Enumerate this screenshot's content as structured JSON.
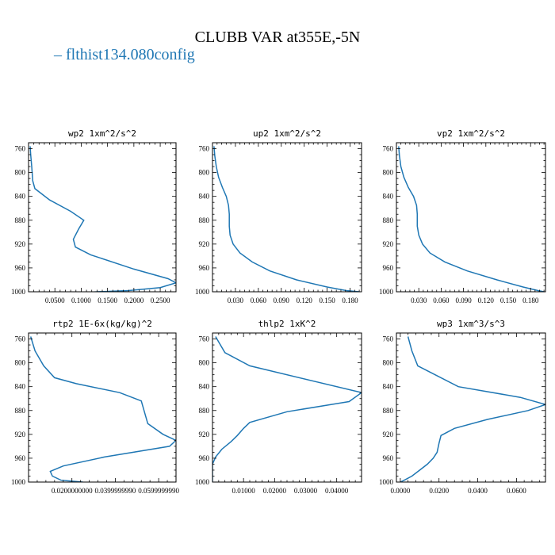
{
  "title": "CLUBB VAR at355E,-5N",
  "legend": {
    "label": "flthist134.080config",
    "color": "#1f77b4"
  },
  "chart_data": [
    {
      "type": "line",
      "title": "wp2   1xm^2/s^2",
      "ylim": [
        1000,
        750
      ],
      "yticks": [
        "760",
        "800",
        "840",
        "880",
        "920",
        "960",
        "1000"
      ],
      "yticks_v": [
        760,
        800,
        840,
        880,
        920,
        960,
        1000
      ],
      "xlim": [
        0.0,
        0.28
      ],
      "xticks": [
        "0.0500",
        "0.1000",
        "0.1500",
        "0.2000",
        "0.2500"
      ],
      "xticks_v": [
        0.05,
        0.1,
        0.15,
        0.2,
        0.25
      ],
      "series": [
        {
          "x": [
            0.003,
            0.004,
            0.006,
            0.008,
            0.012,
            0.04,
            0.08,
            0.105,
            0.095,
            0.085,
            0.089,
            0.118,
            0.2,
            0.265,
            0.28,
            0.25,
            0.19,
            0.13,
            0.09
          ],
          "y": [
            756,
            770,
            790,
            814,
            827,
            846,
            865,
            880,
            895,
            912,
            925,
            938,
            962,
            978,
            985,
            993,
            998,
            1000,
            1002
          ]
        }
      ]
    },
    {
      "type": "line",
      "title": "up2   1xm^2/s^2",
      "ylim": [
        1000,
        750
      ],
      "yticks": [
        "760",
        "800",
        "840",
        "880",
        "920",
        "960",
        "1000"
      ],
      "yticks_v": [
        760,
        800,
        840,
        880,
        920,
        960,
        1000
      ],
      "xlim": [
        0.0,
        0.195
      ],
      "xticks": [
        "0.030",
        "0.060",
        "0.090",
        "0.120",
        "0.150",
        "0.180"
      ],
      "xticks_v": [
        0.03,
        0.06,
        0.09,
        0.12,
        0.15,
        0.18
      ],
      "series": [
        {
          "x": [
            0.002,
            0.003,
            0.005,
            0.008,
            0.013,
            0.018,
            0.021,
            0.022,
            0.022,
            0.023,
            0.027,
            0.036,
            0.052,
            0.075,
            0.11,
            0.15,
            0.175,
            0.192
          ],
          "y": [
            756,
            772,
            790,
            808,
            825,
            840,
            855,
            870,
            890,
            905,
            920,
            935,
            950,
            965,
            980,
            992,
            998,
            1000
          ]
        }
      ]
    },
    {
      "type": "line",
      "title": "vp2   1xm^2/s^2",
      "ylim": [
        1000,
        750
      ],
      "yticks": [
        "760",
        "800",
        "840",
        "880",
        "920",
        "960",
        "1000"
      ],
      "yticks_v": [
        760,
        800,
        840,
        880,
        920,
        960,
        1000
      ],
      "xlim": [
        0.0,
        0.2
      ],
      "xticks": [
        "0.030",
        "0.060",
        "0.090",
        "0.120",
        "0.150",
        "0.180"
      ],
      "xticks_v": [
        0.03,
        0.06,
        0.09,
        0.12,
        0.15,
        0.18
      ],
      "series": [
        {
          "x": [
            0.003,
            0.004,
            0.006,
            0.01,
            0.016,
            0.023,
            0.027,
            0.028,
            0.028,
            0.03,
            0.035,
            0.045,
            0.065,
            0.095,
            0.135,
            0.17,
            0.19,
            0.198
          ],
          "y": [
            756,
            772,
            790,
            808,
            825,
            840,
            855,
            870,
            890,
            905,
            920,
            935,
            950,
            965,
            980,
            992,
            998,
            1000
          ]
        }
      ]
    },
    {
      "type": "line",
      "title": "rtp2   1E-6x(kg/kg)^2",
      "ylim": [
        1000,
        750
      ],
      "yticks": [
        "760",
        "800",
        "840",
        "880",
        "920",
        "960",
        "1000"
      ],
      "yticks_v": [
        760,
        800,
        840,
        880,
        920,
        960,
        1000
      ],
      "xlim": [
        0.0,
        0.068
      ],
      "xticks": [
        "0.0200000000",
        "0.0399999990",
        "0.0599999990"
      ],
      "xticks_v": [
        0.02,
        0.04,
        0.06
      ],
      "series": [
        {
          "x": [
            0.001,
            0.003,
            0.007,
            0.012,
            0.022,
            0.042,
            0.052,
            0.055,
            0.062,
            0.068,
            0.065,
            0.035,
            0.016,
            0.01,
            0.011,
            0.015,
            0.025
          ],
          "y": [
            756,
            780,
            805,
            825,
            835,
            850,
            864,
            902,
            920,
            930,
            940,
            958,
            973,
            982,
            990,
            997,
            1000
          ]
        }
      ]
    },
    {
      "type": "line",
      "title": "thlp2   1xK^2",
      "ylim": [
        1000,
        750
      ],
      "yticks": [
        "760",
        "800",
        "840",
        "880",
        "920",
        "960",
        "1000"
      ],
      "yticks_v": [
        760,
        800,
        840,
        880,
        920,
        960,
        1000
      ],
      "xlim": [
        0.0,
        0.048
      ],
      "xticks": [
        "0.01000",
        "0.02000",
        "0.03000",
        "0.04000"
      ],
      "xticks_v": [
        0.01,
        0.02,
        0.03,
        0.04
      ],
      "series": [
        {
          "x": [
            0.001,
            0.002,
            0.004,
            0.012,
            0.048,
            0.044,
            0.024,
            0.012,
            0.01,
            0.008,
            0.006,
            0.003,
            0.001,
            0.0,
            0.0,
            0.0
          ],
          "y": [
            756,
            765,
            783,
            805,
            850,
            865,
            882,
            900,
            910,
            922,
            932,
            945,
            958,
            970,
            985,
            1000
          ]
        }
      ]
    },
    {
      "type": "line",
      "title": "wp3   1xm^3/s^3",
      "ylim": [
        1000,
        750
      ],
      "yticks": [
        "760",
        "800",
        "840",
        "880",
        "920",
        "960",
        "1000"
      ],
      "yticks_v": [
        760,
        800,
        840,
        880,
        920,
        960,
        1000
      ],
      "xlim": [
        -0.002,
        0.075
      ],
      "xticks": [
        "0.0000",
        "0.0200",
        "0.0400",
        "0.0600"
      ],
      "xticks_v": [
        0.0,
        0.02,
        0.04,
        0.06
      ],
      "series": [
        {
          "x": [
            0.004,
            0.006,
            0.009,
            0.03,
            0.062,
            0.075,
            0.066,
            0.045,
            0.028,
            0.021,
            0.02,
            0.019,
            0.017,
            0.014,
            0.01,
            0.006,
            0.002,
            0.0
          ],
          "y": [
            756,
            780,
            805,
            840,
            858,
            870,
            880,
            895,
            910,
            922,
            935,
            950,
            960,
            970,
            980,
            990,
            997,
            1000
          ]
        }
      ]
    }
  ]
}
